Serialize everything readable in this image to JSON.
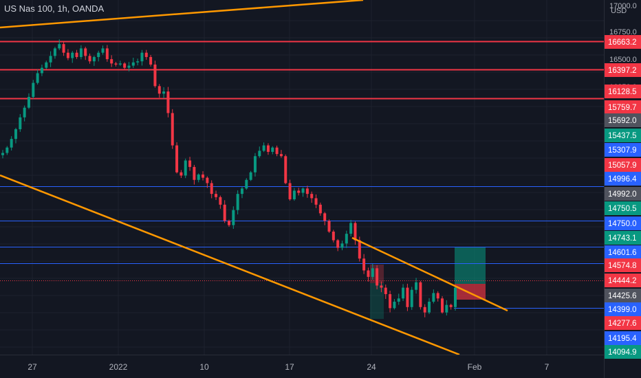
{
  "header": {
    "symbol_title": "US Nas 100, 1h, OANDA",
    "currency": "USD"
  },
  "chart_data": {
    "type": "candlestick",
    "title": "US Nas 100, 1h, OANDA",
    "y_unit": "USD",
    "y_axis_ticks": [
      17000.0,
      16750.0,
      16500.0,
      16250.0
    ],
    "x_axis_ticks": [
      "27",
      "2022",
      "10",
      "17",
      "24",
      "Feb",
      "7"
    ],
    "price_labels": [
      {
        "value": "16663.2",
        "color": "#f23645"
      },
      {
        "value": "16397.2",
        "color": "#f23645"
      },
      {
        "value": "16128.5",
        "color": "#f23645"
      },
      {
        "value": "15759.7",
        "color": "#f23645"
      },
      {
        "value": "15692.0",
        "color": "#50535e"
      },
      {
        "value": "15437.5",
        "color": "#089981"
      },
      {
        "value": "15307.9",
        "color": "#2962ff"
      },
      {
        "value": "15057.9",
        "color": "#f23645"
      },
      {
        "value": "14996.4",
        "color": "#2962ff"
      },
      {
        "value": "14992.0",
        "color": "#50535e"
      },
      {
        "value": "14750.5",
        "color": "#089981"
      },
      {
        "value": "14750.0",
        "color": "#2962ff"
      },
      {
        "value": "14743.1",
        "color": "#089981"
      },
      {
        "value": "14601.6",
        "color": "#2962ff"
      },
      {
        "value": "14574.8",
        "color": "#f23645"
      },
      {
        "value": "14444.2",
        "color": "#f23645"
      },
      {
        "value": "14425.6",
        "color": "#50535e"
      },
      {
        "value": "14399.0",
        "color": "#2962ff"
      },
      {
        "value": "14277.6",
        "color": "#f23645"
      },
      {
        "value": "14195.4",
        "color": "#2962ff"
      },
      {
        "value": "14094.9",
        "color": "#089981"
      }
    ],
    "horizontal_lines": [
      {
        "price": 16663.2,
        "color": "#f23645"
      },
      {
        "price": 16397.2,
        "color": "#f23645"
      },
      {
        "price": 16128.5,
        "color": "#f23645"
      },
      {
        "price": 14996.4,
        "color": "#2962ff"
      },
      {
        "price": 14750.0,
        "color": "#2962ff"
      },
      {
        "price": 14601.6,
        "color": "#2962ff"
      },
      {
        "price": 14574.8,
        "color": "#2962ff"
      }
    ],
    "trend_lines_color": "#ff9800",
    "close_series": [
      15630,
      15680,
      15760,
      15850,
      15960,
      16050,
      16150,
      16280,
      16370,
      16420,
      16470,
      16530,
      16600,
      16640,
      16560,
      16510,
      16560,
      16520,
      16600,
      16530,
      16480,
      16520,
      16560,
      16600,
      16500,
      16460,
      16450,
      16460,
      16420,
      16440,
      16470,
      16480,
      16560,
      16520,
      16450,
      16250,
      16180,
      16200,
      16000,
      15700,
      15450,
      15420,
      15560,
      15500,
      15380,
      15430,
      15400,
      15350,
      15250,
      15220,
      15150,
      15000,
      14960,
      15100,
      15250,
      15300,
      15380,
      15450,
      15600,
      15650,
      15700,
      15640,
      15680,
      15620,
      15600,
      15350,
      15200,
      15280,
      15260,
      15300,
      15250,
      15210,
      15150,
      15070,
      15000,
      14900,
      14820,
      14750,
      14790,
      14880,
      14980,
      14820,
      14650,
      14540,
      14480,
      14560,
      14400,
      14380,
      14320,
      14190,
      14250,
      14280,
      14380,
      14200,
      14360,
      14430,
      14200,
      14150,
      14250,
      14330,
      14280,
      14150,
      14220,
      14200,
      14380
    ]
  }
}
